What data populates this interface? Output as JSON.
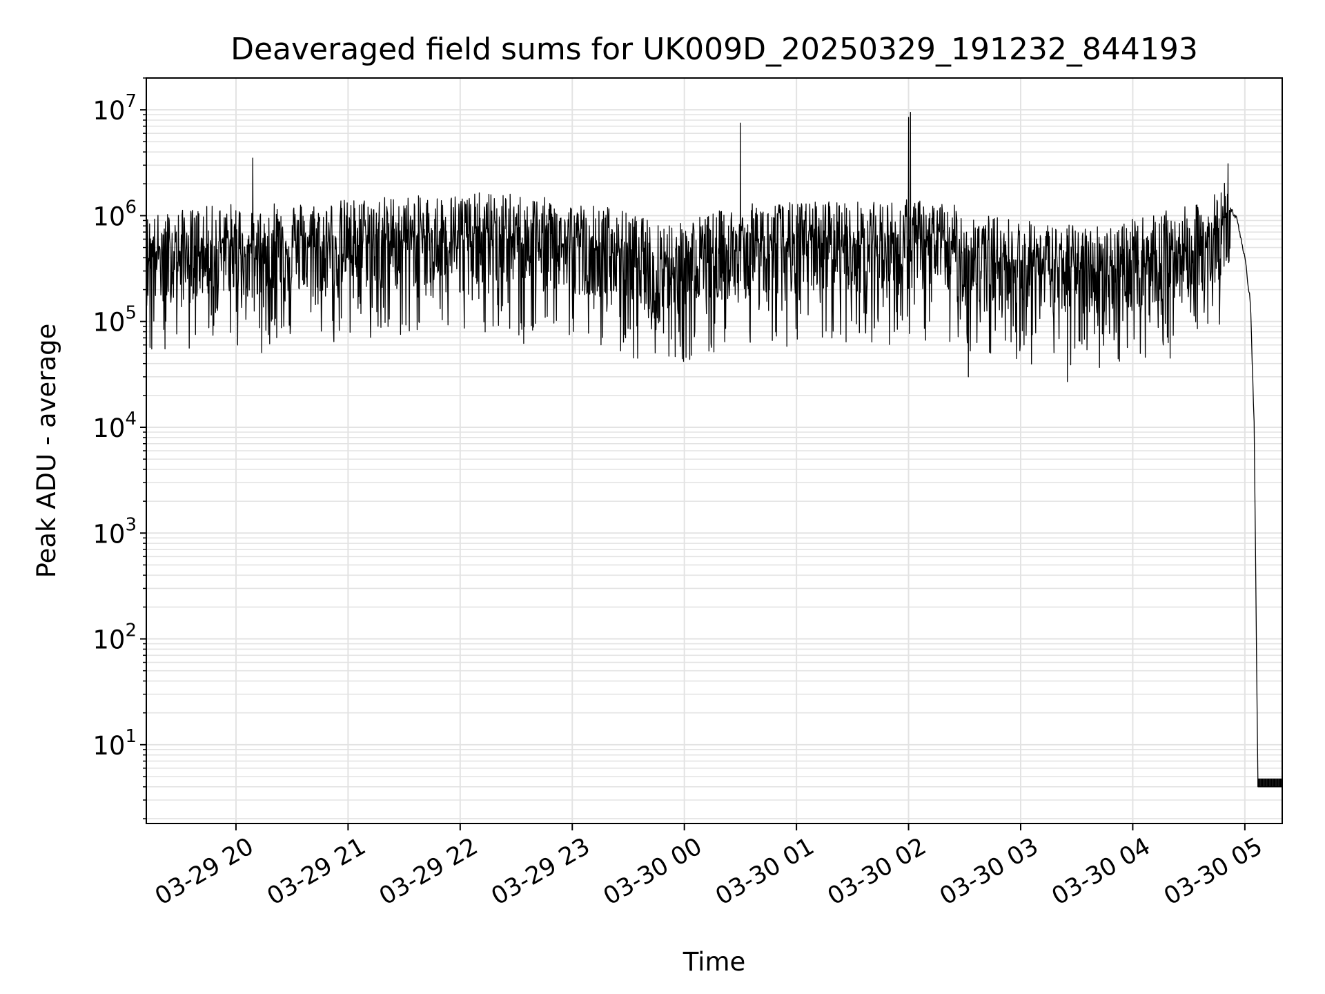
{
  "chart_data": {
    "type": "line",
    "title": "Deaveraged field sums for UK009D_20250329_191232_844193",
    "xlabel": "Time",
    "ylabel": "Peak ADU - average",
    "xscale": "time",
    "yscale": "log",
    "xlim": [
      "2025-03-29 19:12",
      "2025-03-30 05:20"
    ],
    "ylim": [
      1.8,
      20000000
    ],
    "grid": true,
    "legend": "none",
    "line_color": "#000000",
    "grid_color": "#e3e3e3",
    "x_ticks": [
      {
        "value": "2025-03-29 20:00",
        "label": "03-29 20"
      },
      {
        "value": "2025-03-29 21:00",
        "label": "03-29 21"
      },
      {
        "value": "2025-03-29 22:00",
        "label": "03-29 22"
      },
      {
        "value": "2025-03-29 23:00",
        "label": "03-29 23"
      },
      {
        "value": "2025-03-30 00:00",
        "label": "03-30 00"
      },
      {
        "value": "2025-03-30 01:00",
        "label": "03-30 01"
      },
      {
        "value": "2025-03-30 02:00",
        "label": "03-30 02"
      },
      {
        "value": "2025-03-30 03:00",
        "label": "03-30 03"
      },
      {
        "value": "2025-03-30 04:00",
        "label": "03-30 04"
      },
      {
        "value": "2025-03-30 05:00",
        "label": "03-30 05"
      }
    ],
    "y_ticks": [
      {
        "value": 10,
        "base": "10",
        "exp": "1"
      },
      {
        "value": 100,
        "base": "10",
        "exp": "2"
      },
      {
        "value": 1000,
        "base": "10",
        "exp": "3"
      },
      {
        "value": 10000,
        "base": "10",
        "exp": "4"
      },
      {
        "value": 100000,
        "base": "10",
        "exp": "5"
      },
      {
        "value": 1000000,
        "base": "10",
        "exp": "6"
      },
      {
        "value": 10000000,
        "base": "10",
        "exp": "7"
      }
    ],
    "series": [
      {
        "x": [
          "2025-03-29 19:12",
          "2025-03-29 19:30",
          "2025-03-29 19:45",
          "2025-03-29 20:00",
          "2025-03-29 20:10",
          "2025-03-29 20:20",
          "2025-03-29 20:40",
          "2025-03-29 21:00",
          "2025-03-29 21:20",
          "2025-03-29 21:40",
          "2025-03-29 22:00",
          "2025-03-29 22:20",
          "2025-03-29 22:40",
          "2025-03-29 23:00",
          "2025-03-29 23:20",
          "2025-03-29 23:40",
          "2025-03-30 00:00",
          "2025-03-30 00:20",
          "2025-03-30 00:40",
          "2025-03-30 01:00",
          "2025-03-30 01:20",
          "2025-03-30 01:40",
          "2025-03-30 02:00",
          "2025-03-30 02:20",
          "2025-03-30 02:40",
          "2025-03-30 03:00",
          "2025-03-30 03:20",
          "2025-03-30 03:40",
          "2025-03-30 04:00",
          "2025-03-30 04:20",
          "2025-03-30 04:40",
          "2025-03-30 04:52",
          "2025-03-30 04:56",
          "2025-03-30 05:00",
          "2025-03-30 05:03",
          "2025-03-30 05:05",
          "2025-03-30 05:06",
          "2025-03-30 05:07",
          "2025-03-30 05:20"
        ],
        "y": [
          500000,
          550000,
          600000,
          650000,
          500000,
          700000,
          650000,
          700000,
          750000,
          750000,
          800000,
          800000,
          750000,
          650000,
          600000,
          450000,
          450000,
          550000,
          650000,
          650000,
          700000,
          650000,
          700000,
          650000,
          500000,
          450000,
          400000,
          400000,
          450000,
          550000,
          650000,
          1200000,
          900000,
          400000,
          150000,
          10000,
          200,
          4,
          4
        ],
        "spikes": [
          {
            "x": "2025-03-29 20:09",
            "y": 3500000
          },
          {
            "x": "2025-03-30 00:30",
            "y": 7500000
          },
          {
            "x": "2025-03-30 02:00",
            "y": 8500000
          },
          {
            "x": "2025-03-30 02:01",
            "y": 9500000
          },
          {
            "x": "2025-03-30 04:51",
            "y": 3100000
          }
        ],
        "dips": [
          {
            "x": "2025-03-29 19:22",
            "y": 55000
          },
          {
            "x": "2025-03-29 22:34",
            "y": 62000
          },
          {
            "x": "2025-03-30 02:32",
            "y": 30000
          },
          {
            "x": "2025-03-30 03:25",
            "y": 27000
          },
          {
            "x": "2025-03-30 04:20",
            "y": 45000
          }
        ]
      }
    ]
  }
}
